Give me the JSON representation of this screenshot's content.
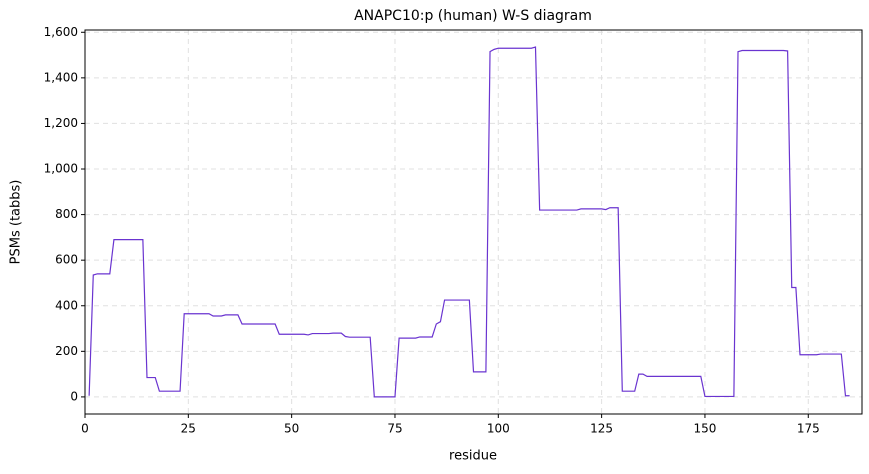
{
  "chart_data": {
    "type": "line",
    "title": "ANAPC10:p (human) W-S diagram",
    "x_label": "residue",
    "y_label": "PSMs (tabbs)",
    "color": "#6a34d0",
    "grid": true,
    "xlim": [
      0,
      188
    ],
    "ylim": [
      -75,
      1610
    ],
    "xticks": [
      0,
      25,
      50,
      75,
      100,
      125,
      150,
      175
    ],
    "yticks": [
      0,
      200,
      400,
      600,
      800,
      {
        "value": 1000,
        "label": "1,000"
      },
      {
        "value": 1200,
        "label": "1,200"
      },
      {
        "value": 1400,
        "label": "1,400"
      },
      {
        "value": 1600,
        "label": "1,600"
      }
    ],
    "x": [
      1,
      2,
      3,
      4,
      5,
      6,
      7,
      8,
      9,
      10,
      11,
      12,
      13,
      14,
      15,
      16,
      17,
      18,
      19,
      20,
      21,
      22,
      23,
      24,
      25,
      26,
      27,
      28,
      29,
      30,
      31,
      32,
      33,
      34,
      35,
      36,
      37,
      38,
      39,
      40,
      41,
      42,
      43,
      44,
      45,
      46,
      47,
      48,
      49,
      50,
      51,
      52,
      53,
      54,
      55,
      56,
      57,
      58,
      59,
      60,
      61,
      62,
      63,
      64,
      65,
      66,
      67,
      68,
      69,
      70,
      71,
      72,
      73,
      74,
      75,
      76,
      77,
      78,
      79,
      80,
      81,
      82,
      83,
      84,
      85,
      86,
      87,
      88,
      89,
      90,
      91,
      92,
      93,
      94,
      95,
      96,
      97,
      98,
      99,
      100,
      101,
      102,
      103,
      104,
      105,
      106,
      107,
      108,
      109,
      110,
      111,
      112,
      113,
      114,
      115,
      116,
      117,
      118,
      119,
      120,
      121,
      122,
      123,
      124,
      125,
      126,
      127,
      128,
      129,
      130,
      131,
      132,
      133,
      134,
      135,
      136,
      137,
      138,
      139,
      140,
      141,
      142,
      143,
      144,
      145,
      146,
      147,
      148,
      149,
      150,
      151,
      152,
      153,
      154,
      155,
      156,
      157,
      158,
      159,
      160,
      161,
      162,
      163,
      164,
      165,
      166,
      167,
      168,
      169,
      170,
      171,
      172,
      173,
      174,
      175,
      176,
      177,
      178,
      179,
      180,
      181,
      182,
      183,
      184,
      185
    ],
    "values": [
      5,
      535,
      540,
      540,
      540,
      540,
      690,
      690,
      690,
      690,
      690,
      690,
      690,
      690,
      85,
      85,
      85,
      25,
      25,
      25,
      25,
      25,
      25,
      365,
      365,
      365,
      365,
      365,
      365,
      365,
      355,
      355,
      355,
      360,
      360,
      360,
      360,
      320,
      320,
      320,
      320,
      320,
      320,
      320,
      320,
      320,
      275,
      275,
      275,
      275,
      275,
      275,
      275,
      272,
      278,
      278,
      278,
      278,
      278,
      280,
      280,
      280,
      265,
      262,
      262,
      262,
      262,
      262,
      262,
      0,
      0,
      0,
      0,
      0,
      0,
      258,
      258,
      258,
      258,
      258,
      263,
      263,
      263,
      263,
      320,
      330,
      425,
      425,
      425,
      425,
      425,
      425,
      425,
      110,
      110,
      110,
      110,
      1515,
      1525,
      1530,
      1530,
      1530,
      1530,
      1530,
      1530,
      1530,
      1530,
      1530,
      1535,
      820,
      820,
      820,
      820,
      820,
      820,
      820,
      820,
      820,
      820,
      825,
      825,
      825,
      825,
      825,
      825,
      822,
      830,
      830,
      830,
      25,
      25,
      25,
      25,
      100,
      100,
      90,
      90,
      90,
      90,
      90,
      90,
      90,
      90,
      90,
      90,
      90,
      90,
      90,
      90,
      2,
      2,
      2,
      2,
      2,
      2,
      2,
      2,
      1515,
      1520,
      1520,
      1520,
      1520,
      1520,
      1520,
      1520,
      1520,
      1520,
      1520,
      1520,
      1518,
      480,
      480,
      185,
      185,
      185,
      185,
      185,
      188,
      188,
      188,
      188,
      188,
      188,
      5,
      5
    ]
  }
}
